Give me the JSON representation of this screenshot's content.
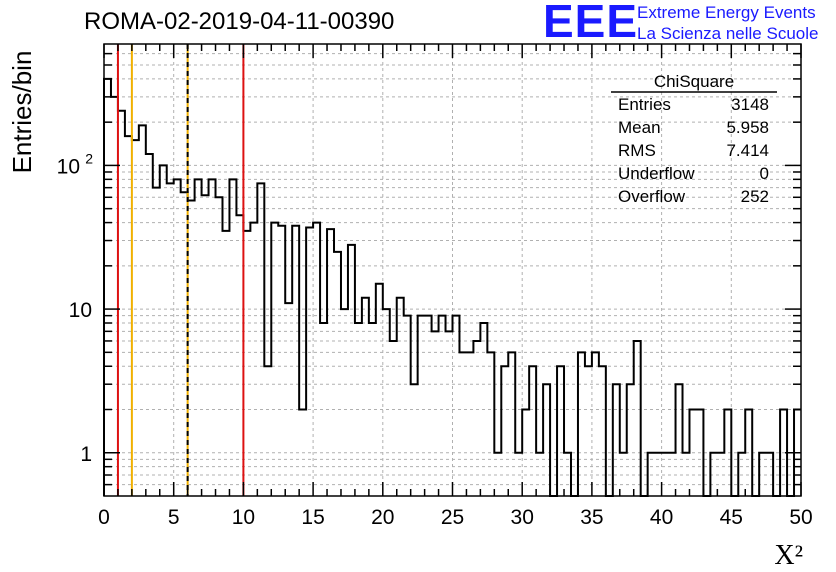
{
  "chart_data": {
    "type": "histogram",
    "title": "ROMA-02-2019-04-11-00390",
    "xlabel": "X²",
    "ylabel": "Entries/bin",
    "xlim": [
      0,
      50
    ],
    "ylim": [
      0.5,
      700
    ],
    "yscale": "log",
    "grid": true,
    "bin_width": 0.5,
    "x_ticks": [
      "0",
      "5",
      "10",
      "15",
      "20",
      "25",
      "30",
      "35",
      "40",
      "45",
      "50"
    ],
    "y_ticks": [
      {
        "value": 1,
        "label": "1"
      },
      {
        "value": 10,
        "label": "10"
      },
      {
        "value": 100,
        "label": "10",
        "sup": "2"
      }
    ],
    "counts": [
      400,
      300,
      240,
      160,
      150,
      190,
      120,
      70,
      100,
      75,
      80,
      65,
      57,
      80,
      62,
      80,
      60,
      35,
      80,
      45,
      35,
      40,
      75,
      4,
      40,
      38,
      11,
      38,
      2,
      37,
      40,
      8,
      36,
      25,
      10,
      28,
      8,
      12,
      8,
      15,
      10,
      6,
      12,
      9,
      3,
      9,
      9,
      7,
      9,
      7,
      9,
      5,
      5,
      6,
      8,
      5,
      1,
      4,
      5,
      1,
      2,
      4,
      1,
      3,
      0,
      4,
      1,
      0,
      5,
      4,
      5,
      4,
      0,
      3,
      1,
      3,
      6,
      0,
      1,
      1,
      1,
      1,
      3,
      1,
      2,
      2,
      0,
      1,
      1,
      2,
      0,
      1,
      2,
      0,
      1,
      1,
      0,
      2,
      0,
      2
    ],
    "reference_lines": [
      {
        "x": 1,
        "color": "#dd1111",
        "style": "solid"
      },
      {
        "x": 2,
        "color": "#f0b000",
        "style": "solid"
      },
      {
        "x": 6,
        "color": "#f0b000",
        "style": "solid"
      },
      {
        "x": 6,
        "color": "#000000",
        "style": "dashed"
      },
      {
        "x": 10,
        "color": "#dd1111",
        "style": "solid"
      }
    ],
    "stats": {
      "name": "ChiSquare",
      "rows": [
        {
          "label": "Entries",
          "value": "3148"
        },
        {
          "label": "Mean",
          "value": "5.958"
        },
        {
          "label": "RMS",
          "value": "7.414"
        },
        {
          "label": "Underflow",
          "value": "0"
        },
        {
          "label": "Overflow",
          "value": "252"
        }
      ]
    }
  },
  "logo": {
    "mark": "EEE",
    "line1": "Extreme Energy Events",
    "line2": "La Scienza nelle Scuole"
  },
  "colors": {
    "hist": "#000000",
    "grid": "#b0b0b0",
    "red": "#dd1111",
    "orange": "#f0b000",
    "logo": "#1a1aff"
  }
}
